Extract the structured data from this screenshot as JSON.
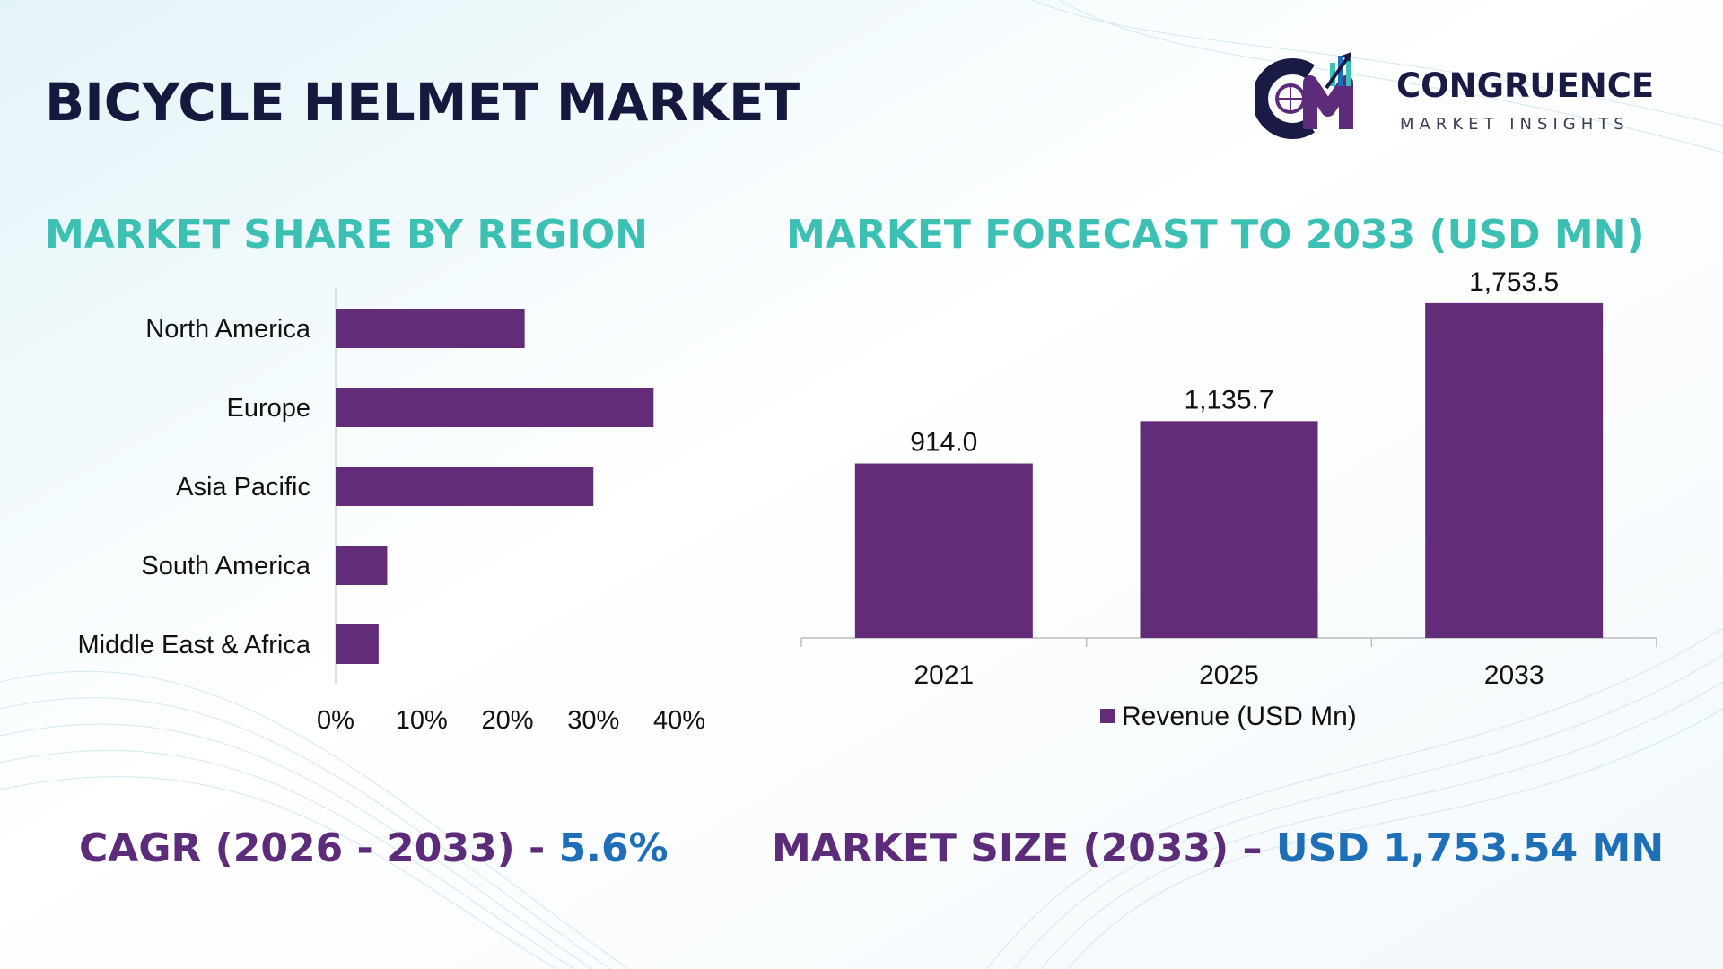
{
  "title": "BICYCLE HELMET MARKET",
  "logo": {
    "name": "CONGRUENCE",
    "tagline": "MARKET INSIGHTS"
  },
  "sections": {
    "region_title": "MARKET SHARE BY REGION",
    "forecast_title": "MARKET FORECAST TO 2033 (USD MN)"
  },
  "colors": {
    "bar": "#632c79",
    "title": "#16183d",
    "section": "#3cc0b4",
    "footer_label": "#5c2b7a",
    "footer_value": "#1f6fb8"
  },
  "chart_data": [
    {
      "type": "bar",
      "orientation": "horizontal",
      "categories": [
        "North America",
        "Europe",
        "Asia Pacific",
        "South America",
        "Middle East & Africa"
      ],
      "values": [
        22,
        37,
        30,
        6,
        5
      ],
      "unit": "%",
      "xlim": [
        0,
        40
      ],
      "x_ticks": [
        "0%",
        "10%",
        "20%",
        "30%",
        "40%"
      ],
      "grid": false
    },
    {
      "type": "bar",
      "orientation": "vertical",
      "categories": [
        "2021",
        "2025",
        "2033"
      ],
      "values": [
        914.0,
        1135.7,
        1753.5
      ],
      "value_labels": [
        "914.0",
        "1,135.7",
        "1,753.5"
      ],
      "series": [
        {
          "name": "Revenue (USD Mn)",
          "values": [
            914.0,
            1135.7,
            1753.5
          ]
        }
      ],
      "ylim": [
        0,
        1800
      ],
      "legend": "bottom",
      "grid": false
    }
  ],
  "footer": {
    "cagr_label": "CAGR (2026 - 2033) - ",
    "cagr_value": "5.6%",
    "size_label": "MARKET SIZE (2033) – ",
    "size_value": "USD 1,753.54 MN"
  }
}
